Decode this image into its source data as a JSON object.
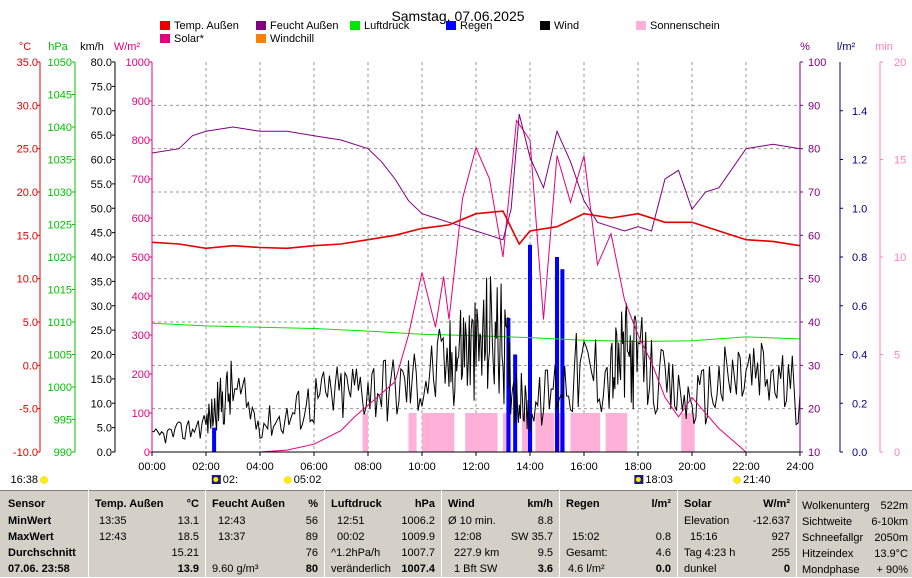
{
  "chart_data": {
    "type": "line",
    "title": "Samstag, 07.06.2025",
    "x_ticks": [
      "00:00",
      "02:00",
      "04:00",
      "06:00",
      "08:00",
      "10:00",
      "12:00",
      "14:00",
      "16:00",
      "18:00",
      "20:00",
      "22:00",
      "24:00"
    ],
    "xlim_hours": [
      0,
      24
    ],
    "legend": [
      {
        "name": "Temp. Außen",
        "color": "#e60000"
      },
      {
        "name": "Feucht Außen",
        "color": "#800080"
      },
      {
        "name": "Luftdruck",
        "color": "#00e600"
      },
      {
        "name": "Regen",
        "color": "#0000ff"
      },
      {
        "name": "Wind",
        "color": "#000000"
      },
      {
        "name": "Sonnenschein",
        "color": "#ffb0d8"
      },
      {
        "name": "Solar*",
        "color": "#e6007e"
      },
      {
        "name": "Windchill",
        "color": "#ff8000"
      }
    ],
    "axes": {
      "temp": {
        "unit": "°C",
        "color": "#e60000",
        "range": [
          -10,
          35
        ],
        "ticks": [
          "35.0",
          "30.0",
          "25.0",
          "20.0",
          "15.0",
          "10.0",
          "5.0",
          "0.0",
          "-5.0",
          "-10.0"
        ]
      },
      "pressure": {
        "unit": "hPa",
        "color": "#00c000",
        "range": [
          990,
          1050
        ],
        "ticks": [
          "1050",
          "1045",
          "1040",
          "1035",
          "1030",
          "1025",
          "1020",
          "1015",
          "1010",
          "1005",
          "1000",
          "995",
          "990"
        ]
      },
      "wind": {
        "unit": "km/h",
        "color": "#000000",
        "range": [
          0,
          80
        ],
        "ticks": [
          "80.0",
          "75.0",
          "70.0",
          "65.0",
          "60.0",
          "55.0",
          "50.0",
          "45.0",
          "40.0",
          "35.0",
          "30.0",
          "25.0",
          "20.0",
          "15.0",
          "10.0",
          "5.0",
          "0.0"
        ]
      },
      "solar": {
        "unit": "W/m²",
        "color": "#e6007e",
        "range": [
          0,
          1000
        ],
        "ticks": [
          "1000",
          "900",
          "800",
          "700",
          "600",
          "500",
          "400",
          "300",
          "200",
          "100",
          "0"
        ]
      },
      "humidity": {
        "unit": "%",
        "color": "#800080",
        "range": [
          10,
          100
        ],
        "ticks": [
          "100",
          "90",
          "80",
          "70",
          "60",
          "50",
          "40",
          "30",
          "20",
          "10"
        ]
      },
      "rain": {
        "unit": "l/m²",
        "color": "#000080",
        "range": [
          0,
          1.6
        ],
        "ticks": [
          "1.4",
          "1.2",
          "1.0",
          "0.8",
          "0.6",
          "0.4",
          "0.2",
          "0.0"
        ]
      },
      "sunshine": {
        "unit": "min",
        "color": "#ff80c0",
        "range": [
          0,
          20
        ],
        "ticks": [
          "20",
          "15",
          "10",
          "5",
          "0"
        ]
      }
    },
    "series": [
      {
        "name": "Temp. Außen",
        "axis": "temp",
        "x": [
          0,
          1,
          2,
          3,
          4,
          5,
          6,
          7,
          8,
          9,
          10,
          11,
          12,
          13,
          13.6,
          14,
          15,
          16,
          17,
          18,
          19,
          20,
          21,
          22,
          23,
          24
        ],
        "values": [
          14.2,
          14.0,
          13.5,
          13.8,
          13.6,
          13.5,
          13.8,
          14.0,
          14.5,
          15.0,
          15.8,
          16.2,
          17.5,
          17.8,
          14.0,
          15.5,
          16.0,
          17.5,
          17.0,
          17.5,
          16.5,
          16.5,
          15.5,
          14.5,
          14.3,
          13.8
        ]
      },
      {
        "name": "Feucht Außen",
        "axis": "humidity",
        "x": [
          0,
          1,
          1.5,
          2,
          3,
          4,
          5,
          6,
          7,
          8,
          8.5,
          9,
          9.5,
          10,
          10.5,
          11,
          11.5,
          12,
          12.5,
          13,
          13.3,
          13.6,
          14,
          14.5,
          15,
          15.5,
          16,
          16.5,
          17,
          17.5,
          18,
          18.5,
          19,
          19.5,
          20,
          20.5,
          21,
          22,
          23,
          24
        ],
        "values": [
          79,
          80,
          83,
          84,
          85,
          84,
          84,
          83,
          82,
          80,
          77,
          73,
          68,
          65,
          64,
          63,
          62,
          61,
          60,
          59,
          66,
          88,
          78,
          71,
          84,
          77,
          68,
          63,
          62,
          61,
          62,
          61,
          73,
          75,
          66,
          70,
          71,
          80,
          81,
          80
        ]
      },
      {
        "name": "Luftdruck",
        "axis": "pressure",
        "x": [
          0,
          2,
          4,
          6,
          8,
          10,
          12,
          14,
          16,
          18,
          20,
          22,
          24
        ],
        "values": [
          1009.8,
          1009.4,
          1009.2,
          1009.0,
          1008.6,
          1008.1,
          1007.9,
          1007.6,
          1007.2,
          1007.0,
          1007.1,
          1007.7,
          1007.4
        ]
      },
      {
        "name": "Solar*",
        "axis": "solar",
        "x": [
          0,
          4,
          5,
          6,
          7,
          7.5,
          8,
          8.5,
          9,
          9.5,
          10,
          10.5,
          10.8,
          11,
          11.5,
          12,
          12.5,
          13,
          13.5,
          14,
          14.5,
          15,
          15.5,
          16,
          16.5,
          17,
          17.5,
          18,
          18.5,
          19,
          19.5,
          20,
          21,
          21.5,
          22,
          24
        ],
        "values": [
          0,
          0,
          5,
          20,
          55,
          90,
          120,
          150,
          180,
          300,
          460,
          320,
          450,
          340,
          650,
          780,
          700,
          500,
          850,
          800,
          340,
          760,
          640,
          760,
          480,
          560,
          390,
          300,
          230,
          140,
          90,
          140,
          60,
          30,
          0,
          0
        ]
      },
      {
        "name": "Wind",
        "axis": "wind",
        "x": [
          0,
          1,
          2,
          2.5,
          3,
          4,
          5,
          6,
          7,
          8,
          9,
          10,
          11,
          11.5,
          12,
          12.5,
          13,
          13.5,
          14,
          15,
          16,
          17,
          17.5,
          18,
          19,
          20,
          21,
          22,
          23,
          24
        ],
        "values": [
          3,
          4,
          6,
          10,
          13,
          6,
          7,
          11,
          12,
          14,
          13,
          15,
          18,
          22,
          20,
          25,
          22,
          12,
          8,
          14,
          17,
          16,
          20,
          19,
          13,
          10,
          14,
          16,
          15,
          12
        ]
      }
    ],
    "rain_bars": {
      "axis": "rain",
      "hours": [
        2.3,
        13.2,
        13.45,
        14.0,
        15.0,
        15.2
      ],
      "values": [
        0.1,
        0.55,
        0.4,
        0.85,
        0.8,
        0.75
      ]
    },
    "sunshine_bars": {
      "axis": "sunshine",
      "ranges": [
        [
          7.8,
          8.0
        ],
        [
          9.5,
          9.8
        ],
        [
          10.0,
          11.2
        ],
        [
          11.6,
          12.8
        ],
        [
          13.0,
          13.3
        ],
        [
          13.7,
          14.1
        ],
        [
          14.2,
          14.9
        ],
        [
          15.0,
          15.3
        ],
        [
          15.5,
          16.6
        ],
        [
          16.8,
          17.6
        ],
        [
          19.6,
          20.1
        ]
      ],
      "value": 2
    },
    "markers": [
      {
        "label": "16:38",
        "hour": -0.5,
        "type": "sun"
      },
      {
        "label": "02:",
        "hour": 2.4,
        "type": "moon"
      },
      {
        "label": "05:02",
        "hour": 5.03,
        "type": "sun"
      },
      {
        "label": "18:03",
        "hour": 18.05,
        "type": "moon"
      },
      {
        "label": "21:40",
        "hour": 21.67,
        "type": "sun"
      }
    ]
  },
  "panel": {
    "sensor": {
      "title": "Sensor",
      "rows": [
        "MinWert",
        "MaxWert",
        "Durchschnitt",
        "07.06. 23:58"
      ]
    },
    "temp": {
      "title": "Temp. Außen",
      "unit": "°C",
      "rows": [
        [
          "13:35",
          "13.1"
        ],
        [
          "12:43",
          "18.5"
        ],
        [
          "",
          "15.21"
        ],
        [
          "",
          "13.9"
        ]
      ]
    },
    "feucht": {
      "title": "Feucht Außen",
      "unit": "%",
      "rows": [
        [
          "12:43",
          "56"
        ],
        [
          "13:37",
          "89"
        ],
        [
          "",
          "76"
        ],
        [
          "9.60 g/m³",
          "80"
        ]
      ]
    },
    "luftdruck": {
      "title": "Luftdruck",
      "unit": "hPa",
      "rows": [
        [
          "12:51",
          "1006.2"
        ],
        [
          "00:02",
          "1009.9"
        ],
        [
          "^1.2hPa/h",
          "1007.7"
        ],
        [
          "veränderlich",
          "1007.4"
        ]
      ]
    },
    "wind": {
      "title": "Wind",
      "unit": "km/h",
      "rows": [
        [
          "Ø 10 min.",
          "8.8"
        ],
        [
          "12:08",
          "SW 35.7"
        ],
        [
          "227.9 km",
          "9.5"
        ],
        [
          "1 Bft SW",
          "3.6"
        ]
      ]
    },
    "regen": {
      "title": "Regen",
      "unit": "l/m²",
      "rows": [
        [
          "",
          ""
        ],
        [
          "15:02",
          "0.8"
        ],
        [
          "Gesamt:",
          "4.6"
        ],
        [
          "4.6 l/m²",
          "0.0"
        ]
      ]
    },
    "solar": {
      "title": "Solar",
      "unit": "W/m²",
      "rows": [
        [
          "Elevation",
          "-12.637"
        ],
        [
          "15:16",
          "927"
        ],
        [
          "Tag 4:23 h",
          "255"
        ],
        [
          "dunkel",
          "0"
        ]
      ]
    },
    "extra": {
      "rows": [
        [
          "Wolkenunterg",
          "522m"
        ],
        [
          "Sichtweite",
          "6-10km"
        ],
        [
          "Schneefallgr",
          "2050m"
        ],
        [
          "Hitzeindex",
          "13.9°C"
        ],
        [
          "Mondphase",
          "+ 90%"
        ]
      ]
    }
  }
}
